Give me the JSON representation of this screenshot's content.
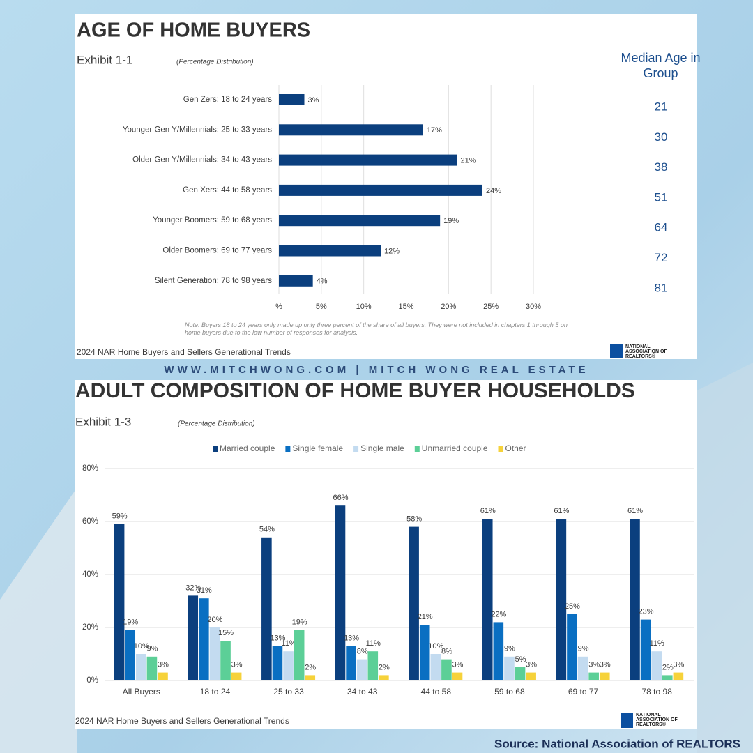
{
  "chart_data": [
    {
      "type": "bar",
      "horizontal": true,
      "title": "AGE OF HOME BUYERS",
      "exhibit": "Exhibit 1-1",
      "subtitle": "(Percentage Distribution)",
      "categories": [
        "Gen Zers: 18 to 24 years",
        "Younger Gen Y/Millennials: 25 to 33 years",
        "Older Gen Y/Millennials: 34 to 43 years",
        "Gen Xers: 44 to 58 years",
        "Younger Boomers: 59 to 68 years",
        "Older Boomers: 69 to 77 years",
        "Silent Generation: 78 to 98 years"
      ],
      "values": [
        3,
        17,
        21,
        24,
        19,
        12,
        4
      ],
      "value_labels": [
        "3%",
        "17%",
        "21%",
        "24%",
        "19%",
        "12%",
        "4%"
      ],
      "color": "#0b3f7e",
      "xlim": [
        0,
        30
      ],
      "xticks": [
        {
          "value": 0,
          "label": "%"
        },
        {
          "value": 5,
          "label": "5%"
        },
        {
          "value": 10,
          "label": "10%"
        },
        {
          "value": 15,
          "label": "15%"
        },
        {
          "value": 20,
          "label": "20%"
        },
        {
          "value": 25,
          "label": "25%"
        },
        {
          "value": 30,
          "label": "30%"
        }
      ],
      "grid": true,
      "median_age": {
        "title": "Median Age in Group",
        "values": [
          21,
          30,
          38,
          51,
          64,
          72,
          81
        ]
      },
      "note": "Note: Buyers 18 to 24 years only made up only three percent of the share of all buyers. They were not included in chapters 1 through 5 on home buyers due to the low number of responses for analysis.",
      "footer": "2024 NAR Home Buyers and Sellers Generational Trends",
      "logo": "NATIONAL ASSOCIATION OF REALTORS®"
    },
    {
      "type": "bar",
      "title": "ADULT COMPOSITION OF HOME BUYER HOUSEHOLDS",
      "exhibit": "Exhibit 1-3",
      "subtitle": "(Percentage Distribution)",
      "categories": [
        "All Buyers",
        "18 to 24",
        "25 to 33",
        "34 to 43",
        "44 to 58",
        "59 to 68",
        "69 to 77",
        "78 to 98"
      ],
      "series": [
        {
          "name": "Married couple",
          "color": "#0b3f7e",
          "values": [
            59,
            32,
            54,
            66,
            58,
            61,
            61,
            61
          ],
          "value_labels": [
            "59%",
            "32%",
            "54%",
            "66%",
            "58%",
            "61%",
            "61%",
            "61%"
          ]
        },
        {
          "name": "Single female",
          "color": "#0a6fc2",
          "values": [
            19,
            31,
            13,
            13,
            21,
            22,
            25,
            23
          ],
          "value_labels": [
            "19%",
            "31%",
            "13%",
            "13%",
            "21%",
            "22%",
            "25%",
            "23%"
          ]
        },
        {
          "name": "Single male",
          "color": "#c3dbf0",
          "values": [
            10,
            20,
            11,
            8,
            10,
            9,
            9,
            11
          ],
          "value_labels": [
            "10%",
            "20%",
            "11%",
            "8%",
            "10%",
            "9%",
            "9%",
            "11%"
          ]
        },
        {
          "name": "Unmarried couple",
          "color": "#5ccf97",
          "values": [
            9,
            15,
            19,
            11,
            8,
            5,
            3,
            2
          ],
          "value_labels": [
            "9%",
            "15%",
            "19%",
            "11%",
            "8%",
            "5%",
            "3%",
            "2%"
          ]
        },
        {
          "name": "Other",
          "color": "#f6d23a",
          "values": [
            3,
            3,
            2,
            2,
            3,
            3,
            3,
            3
          ],
          "value_labels": [
            "3%",
            "3%",
            "2%",
            "2%",
            "3%",
            "3%",
            "3%",
            "3%"
          ]
        }
      ],
      "ylim": [
        0,
        80
      ],
      "yticks": [
        {
          "value": 0,
          "label": "0%"
        },
        {
          "value": 20,
          "label": "20%"
        },
        {
          "value": 40,
          "label": "40%"
        },
        {
          "value": 60,
          "label": "60%"
        },
        {
          "value": 80,
          "label": "80%"
        }
      ],
      "grid": true,
      "footer": "2024 NAR Home Buyers and Sellers Generational Trends",
      "logo": "NATIONAL ASSOCIATION OF REALTORS®"
    }
  ],
  "banner": "WWW.MITCHWONG.COM | MITCH WONG REAL ESTATE",
  "source": "Source: National Association of REALTORS"
}
